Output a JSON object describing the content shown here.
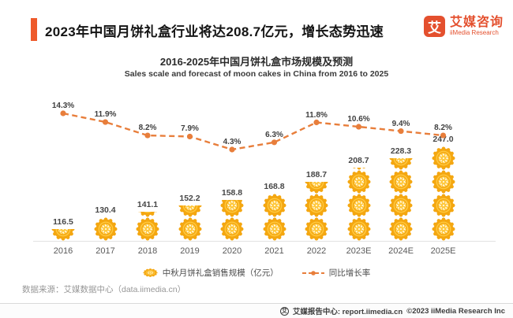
{
  "header": {
    "title": "2023年中国月饼礼盒行业将达208.7亿元，增长态势迅速",
    "logo": {
      "mark": "艾",
      "name_cn": "艾媒咨询",
      "name_en": "iiMedia Research"
    }
  },
  "chart": {
    "title_cn": "2016-2025年中国月饼礼盒市场规模及预测",
    "title_en": "Sales scale and forecast of moon cakes in China from 2016 to 2025"
  },
  "chart_data": {
    "type": "combo",
    "categories": [
      "2016",
      "2017",
      "2018",
      "2019",
      "2020",
      "2021",
      "2022",
      "2023E",
      "2024E",
      "2025E"
    ],
    "series": [
      {
        "name": "中秋月饼礼盒销售规模（亿元）",
        "type": "pictogram-bar",
        "icon": "mooncake-icon",
        "color": "#F4A711",
        "values": [
          116.5,
          130.4,
          141.1,
          152.2,
          158.8,
          168.8,
          188.7,
          208.7,
          228.3,
          247.0
        ],
        "icon_units": [
          0.5,
          1,
          1.25,
          1.5,
          1.75,
          2,
          2.5,
          3.1,
          3.5,
          4
        ]
      },
      {
        "name": "同比增长率",
        "type": "line",
        "style": "dashed",
        "color": "#E87E3B",
        "unit": "%",
        "values": [
          14.3,
          11.9,
          8.2,
          7.9,
          4.3,
          6.3,
          11.8,
          10.6,
          9.4,
          8.2
        ]
      }
    ],
    "value_label_format": "one-decimal",
    "grid": false,
    "legend_position": "bottom",
    "ylim_bars": [
      0,
      260
    ],
    "ylim_line_percent": [
      0,
      16
    ]
  },
  "legend": {
    "bar_label": "中秋月饼礼盒销售规模（亿元）",
    "line_label": "同比增长率"
  },
  "source": "数据来源：艾媒数据中心（data.iimedia.cn）",
  "footer": {
    "icon_mark": "艾",
    "text": "艾媒报告中心: report.iimedia.cn",
    "copyright": "©2023  iiMedia Research Inc"
  },
  "colors": {
    "accent_orange": "#EE5A2B",
    "logo_orange": "#E4502E",
    "line_orange": "#E87E3B",
    "cake_gold": "#F4A711",
    "cake_light": "#FFC93F"
  }
}
